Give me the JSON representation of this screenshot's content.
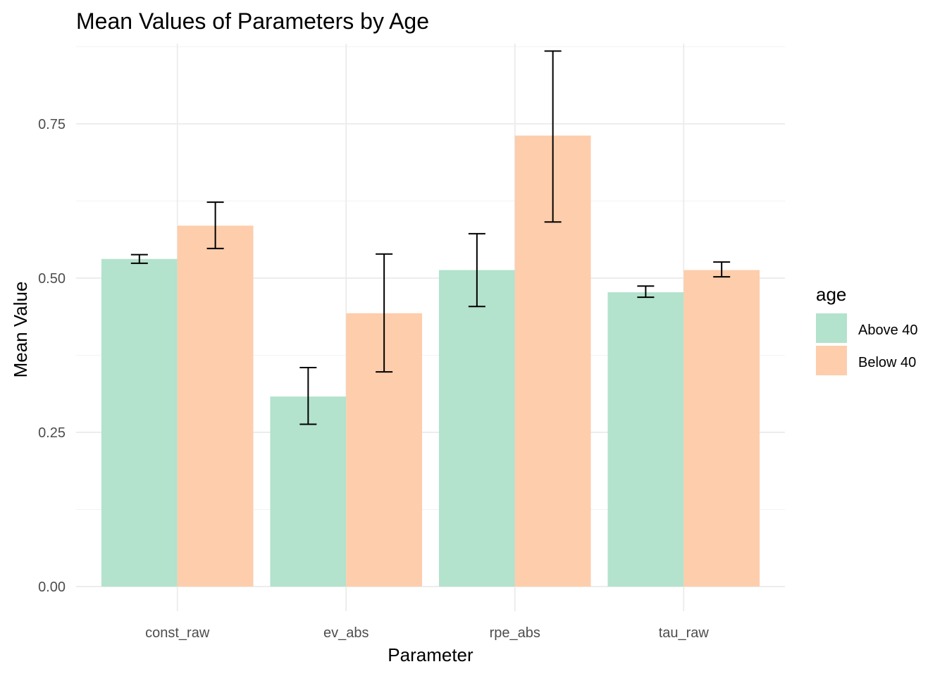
{
  "colors": {
    "above": "#b3e2cd",
    "below": "#fdcdac",
    "grid": "#ebebeb",
    "tick_text": "#4d4d4d"
  },
  "chart_data": {
    "type": "bar",
    "title": "Mean Values of Parameters by Age",
    "xlabel": "Parameter",
    "ylabel": "Mean Value",
    "categories": [
      "const_raw",
      "ev_abs",
      "rpe_abs",
      "tau_raw"
    ],
    "ylim": [
      -0.04,
      0.88
    ],
    "yticks": [
      0.0,
      0.25,
      0.5,
      0.75
    ],
    "ytick_labels": [
      "0.00",
      "0.25",
      "0.50",
      "0.75"
    ],
    "legend_title": "age",
    "legend_position": "right",
    "series": [
      {
        "name": "Above 40",
        "values": [
          0.531,
          0.308,
          0.513,
          0.477
        ],
        "err_low": [
          0.524,
          0.263,
          0.454,
          0.469
        ],
        "err_high": [
          0.538,
          0.355,
          0.572,
          0.487
        ]
      },
      {
        "name": "Below 40",
        "values": [
          0.585,
          0.443,
          0.731,
          0.513
        ],
        "err_low": [
          0.548,
          0.348,
          0.591,
          0.502
        ],
        "err_high": [
          0.623,
          0.539,
          0.868,
          0.526
        ]
      }
    ]
  }
}
